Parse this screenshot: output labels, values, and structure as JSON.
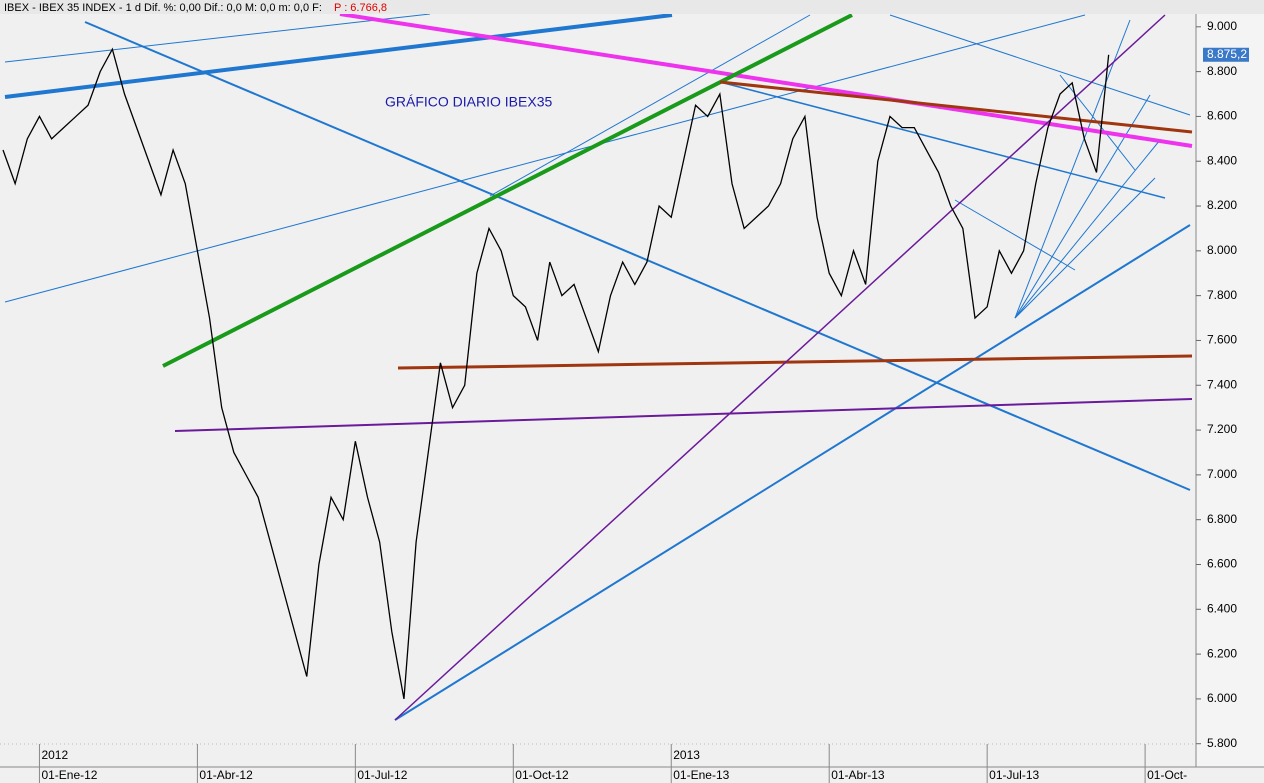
{
  "chart_data": {
    "type": "line",
    "header": "IBEX - IBEX 35 INDEX - 1 d Dif. %: 0,00 Dif.: 0,0 M: 0,0 m: 0,0 F:",
    "header_price": "P : 6.766,8",
    "annotation": "GRÁFICO DIARIO IBEX35",
    "year_labels": [
      {
        "index": 3,
        "label": "2012"
      },
      {
        "index": 55,
        "label": "2013"
      }
    ],
    "categories": [
      null,
      null,
      null,
      "01-Ene-12",
      null,
      null,
      null,
      null,
      null,
      null,
      null,
      null,
      null,
      null,
      null,
      null,
      "01-Abr-12",
      null,
      null,
      null,
      null,
      null,
      null,
      null,
      null,
      null,
      null,
      null,
      null,
      "01-Jul-12",
      null,
      null,
      null,
      null,
      null,
      null,
      null,
      null,
      null,
      null,
      null,
      null,
      "01-Oct-12",
      null,
      null,
      null,
      null,
      null,
      null,
      null,
      null,
      null,
      null,
      null,
      null,
      "01-Ene-13",
      null,
      null,
      null,
      null,
      null,
      null,
      null,
      null,
      null,
      null,
      null,
      null,
      "01-Abr-13",
      null,
      null,
      null,
      null,
      null,
      null,
      null,
      null,
      null,
      null,
      null,
      null,
      "01-Jul-13",
      null,
      null,
      null,
      null,
      null,
      null,
      null,
      null,
      null,
      null,
      null,
      null,
      "01-Oct-"
    ],
    "series": [
      {
        "name": "IBEX 35",
        "color": "#000000",
        "values": [
          8450,
          8300,
          8500,
          8600,
          8500,
          8550,
          8600,
          8650,
          8800,
          8900,
          8700,
          8550,
          8400,
          8250,
          8450,
          8300,
          8000,
          7700,
          7300,
          7100,
          7000,
          6900,
          6700,
          6500,
          6300,
          6100,
          6600,
          6900,
          6800,
          7150,
          6900,
          6700,
          6300,
          6000,
          6700,
          7100,
          7500,
          7300,
          7400,
          7900,
          8100,
          8000,
          7800,
          7750,
          7600,
          7950,
          7800,
          7850,
          7700,
          7550,
          7800,
          7950,
          7850,
          7950,
          8200,
          8150,
          8400,
          8650,
          8600,
          8700,
          8300,
          8100,
          8150,
          8200,
          8300,
          8500,
          8600,
          8150,
          7900,
          7800,
          8000,
          7850,
          8400,
          8600,
          8550,
          8550,
          8450,
          8350,
          8200,
          8100,
          7700,
          7750,
          8000,
          7900,
          8000,
          8300,
          8550,
          8700,
          8750,
          8500,
          8350,
          8875,
          null,
          null,
          null
        ]
      }
    ],
    "last_price": {
      "value": 8875.2,
      "label": "8.875,2"
    },
    "ylim": [
      5705,
      9075
    ],
    "yticks": [
      {
        "value": 5800,
        "label": "5.800"
      },
      {
        "value": 6000,
        "label": "6.000"
      },
      {
        "value": 6200,
        "label": "6.200"
      },
      {
        "value": 6400,
        "label": "6.400"
      },
      {
        "value": 6600,
        "label": "6.600"
      },
      {
        "value": 6800,
        "label": "6.800"
      },
      {
        "value": 7000,
        "label": "7.000"
      },
      {
        "value": 7200,
        "label": "7.200"
      },
      {
        "value": 7400,
        "label": "7.400"
      },
      {
        "value": 7600,
        "label": "7.600"
      },
      {
        "value": 7800,
        "label": "7.800"
      },
      {
        "value": 8000,
        "label": "8.000"
      },
      {
        "value": 8200,
        "label": "8.200"
      },
      {
        "value": 8400,
        "label": "8.400"
      },
      {
        "value": 8600,
        "label": "8.600"
      },
      {
        "value": 8800,
        "label": "8.800"
      },
      {
        "value": 9000,
        "label": "9.000"
      }
    ]
  }
}
